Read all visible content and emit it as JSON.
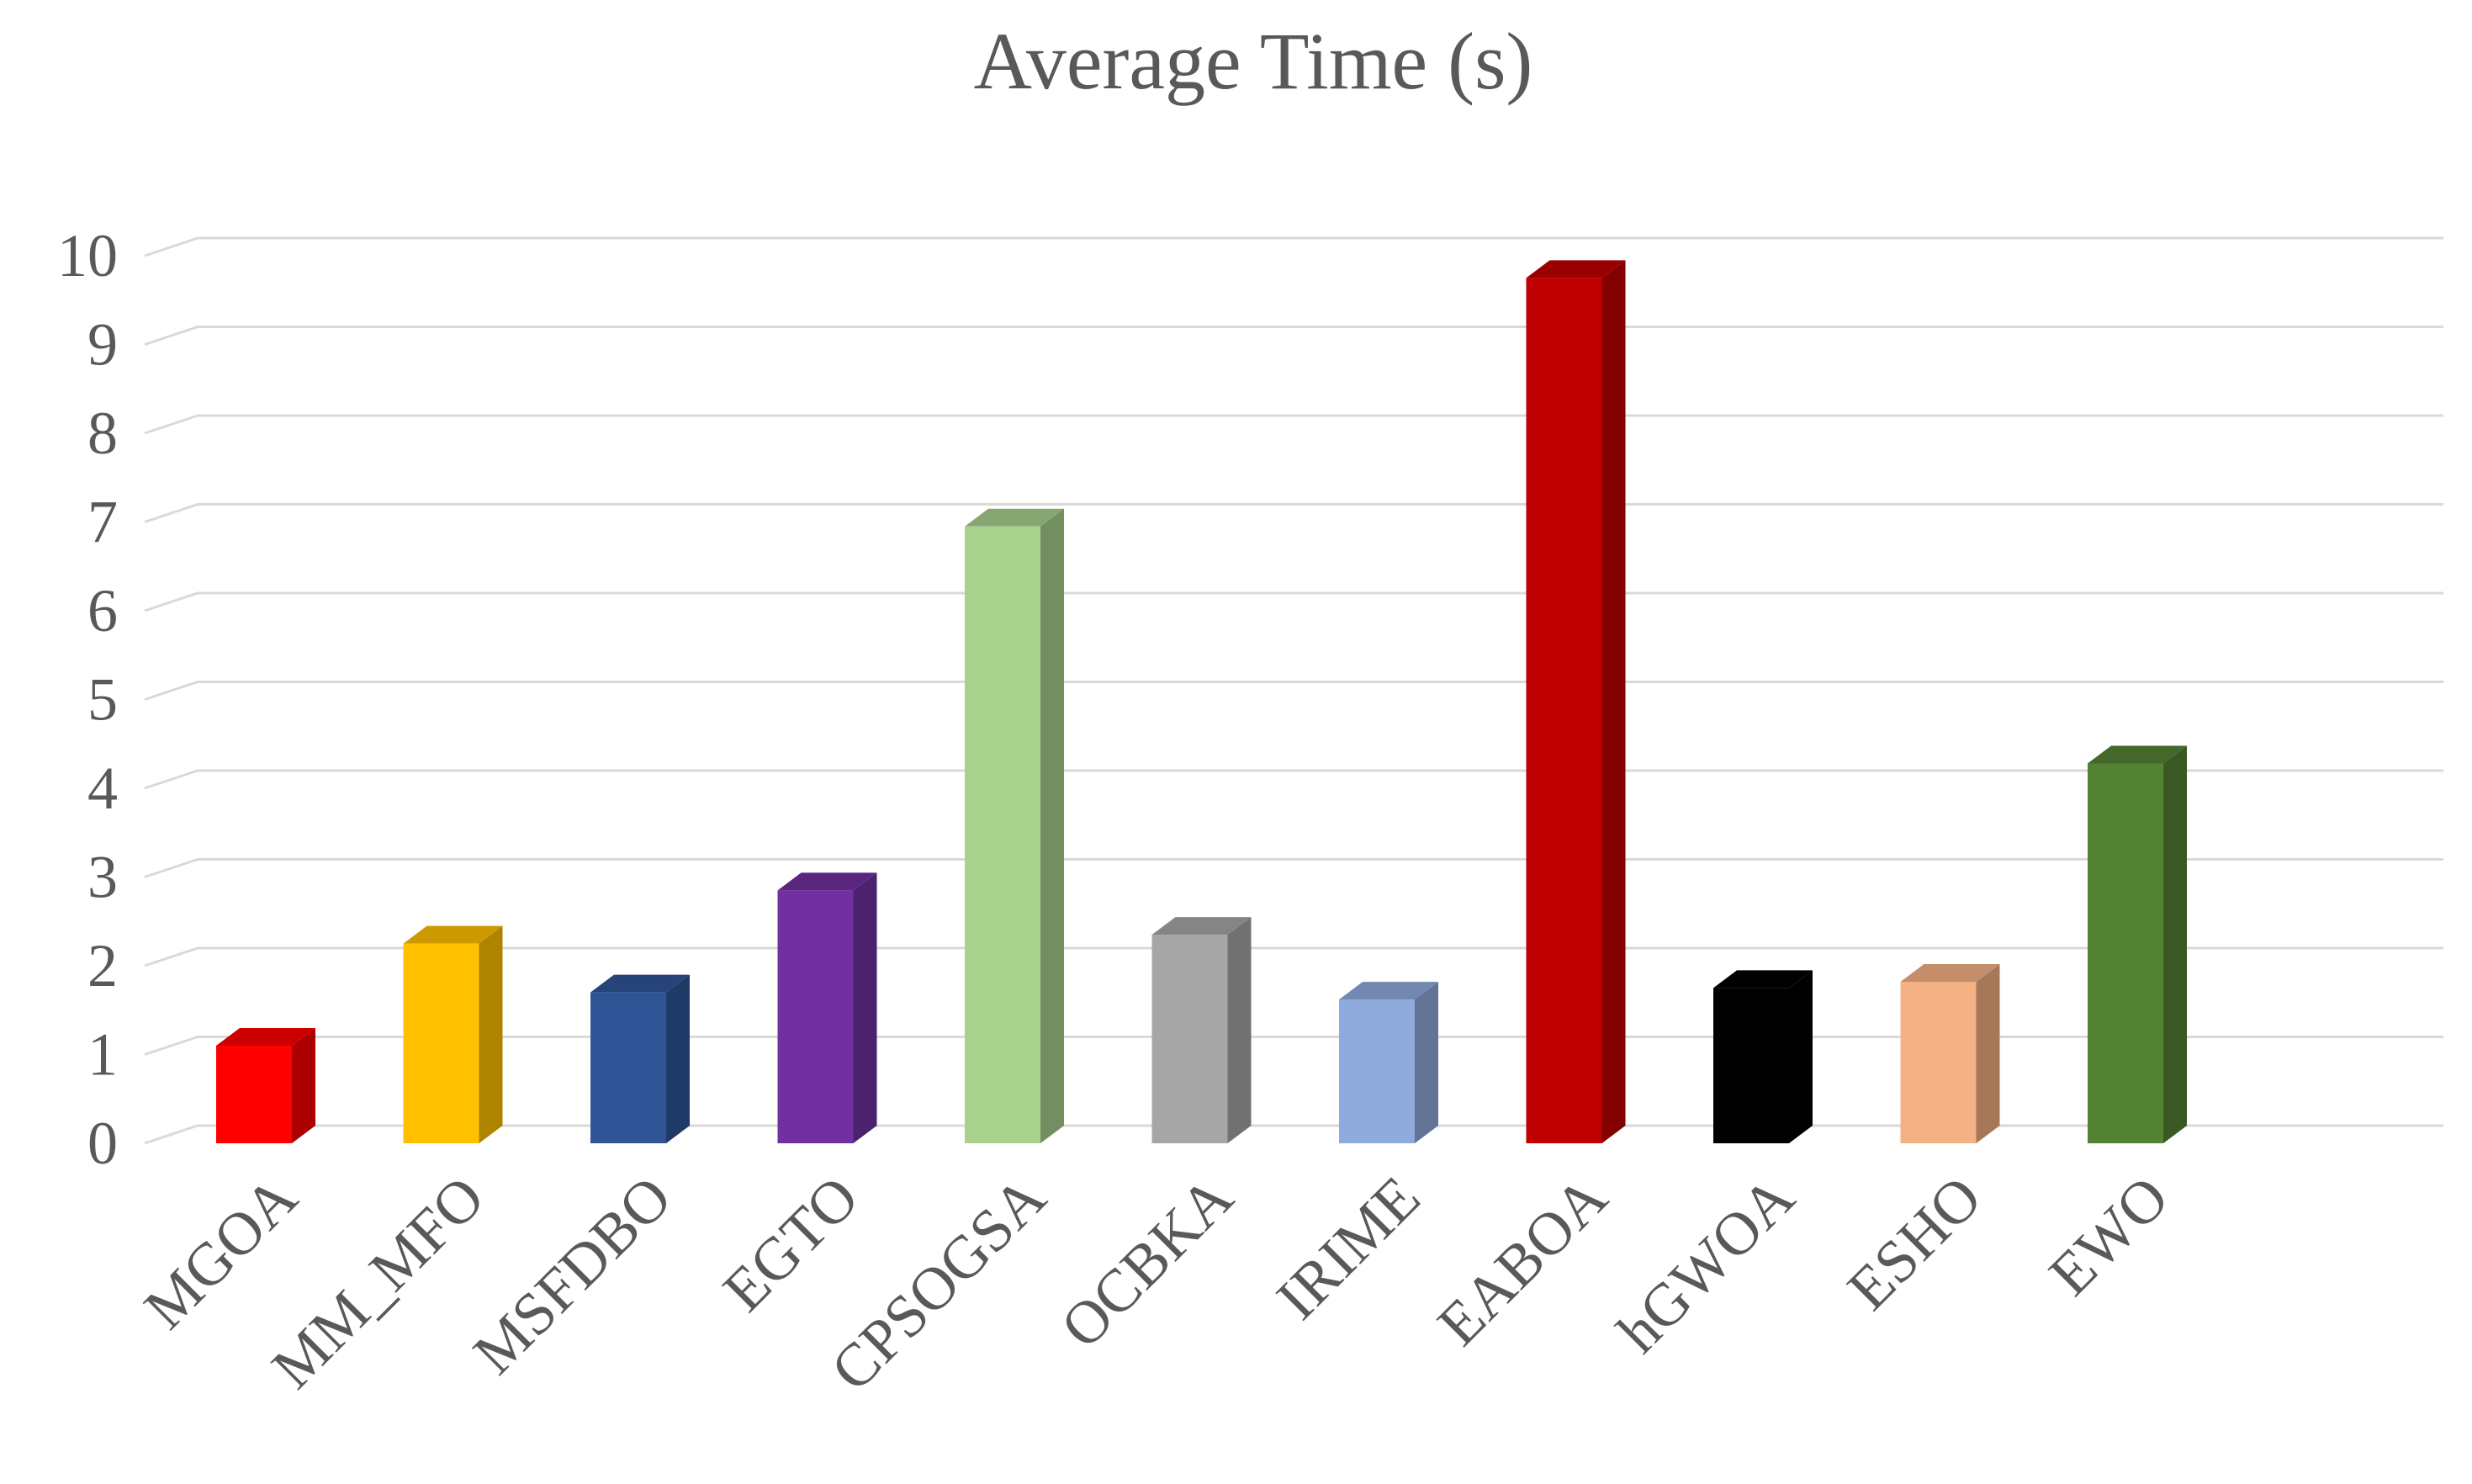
{
  "chart_data": {
    "type": "bar",
    "title": "Average Time (s)",
    "xlabel": "",
    "ylabel": "",
    "ylim": [
      0,
      10
    ],
    "yticks": [
      "0",
      "1",
      "2",
      "3",
      "4",
      "5",
      "6",
      "7",
      "8",
      "9",
      "10"
    ],
    "grid": true,
    "legend": "none",
    "style": "3d-column",
    "categories": [
      "MGOA",
      "MM_MFO",
      "MSFDBO",
      "EGTO",
      "CPSOGSA",
      "OCBKA",
      "IRIME",
      "EABOA",
      "hGWOA",
      "ESHO",
      "EWO"
    ],
    "values": [
      1.1,
      2.25,
      1.7,
      2.85,
      6.95,
      2.35,
      1.62,
      9.75,
      1.75,
      1.82,
      4.28
    ],
    "colors": [
      "#FF0000",
      "#FFC000",
      "#2F5597",
      "#7030A0",
      "#A9D18E",
      "#A6A6A6",
      "#8FAADC",
      "#C00000",
      "#000000",
      "#F4B183",
      "#548235"
    ]
  }
}
